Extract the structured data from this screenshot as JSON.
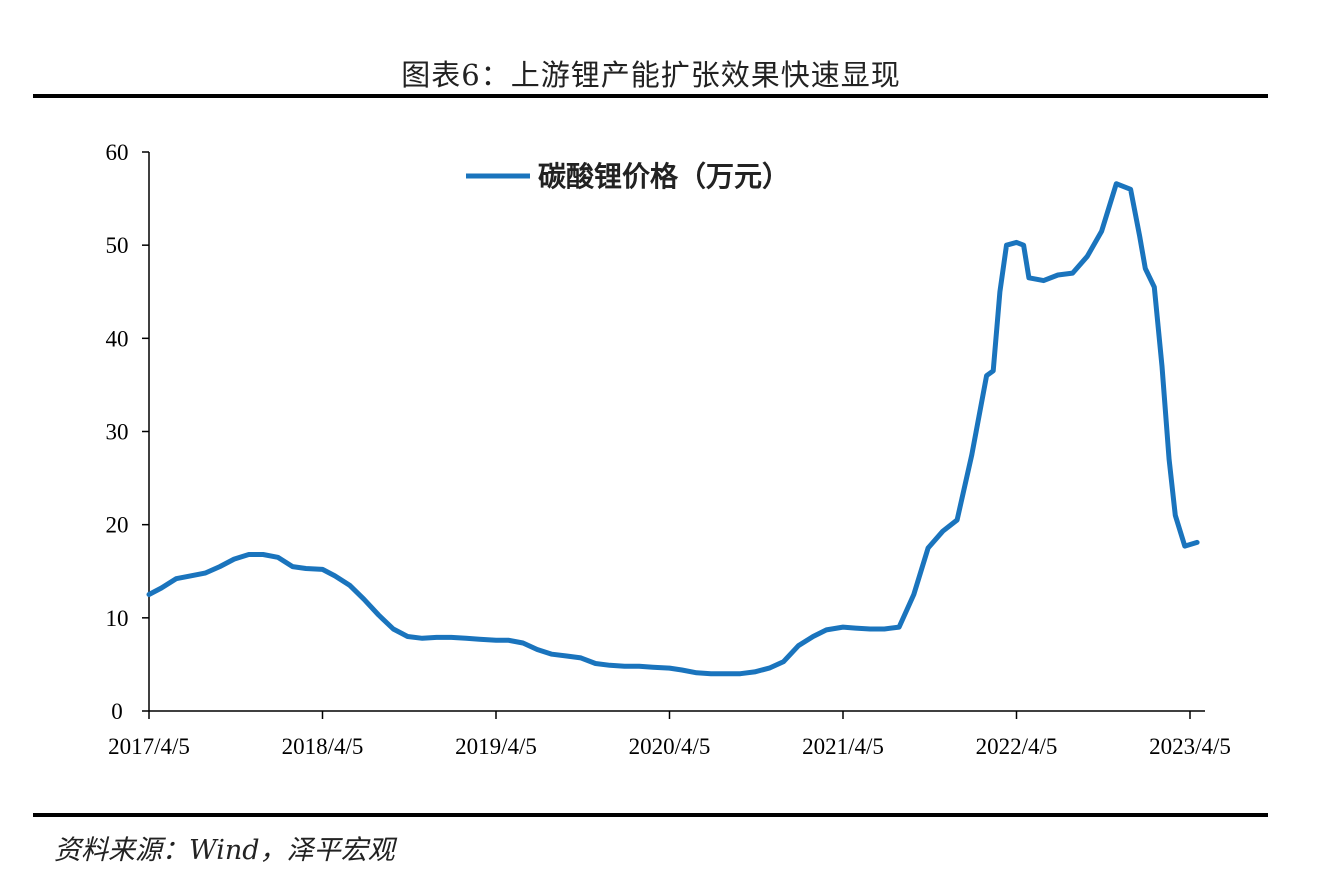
{
  "title": "图表6：上游锂产能扩张效果快速显现",
  "source": "资料来源：Wind，泽平宏观",
  "chart_data": {
    "type": "line",
    "title": "",
    "xlabel": "",
    "ylabel": "",
    "ylim": [
      0,
      60
    ],
    "yticks": [
      0,
      10,
      20,
      30,
      40,
      50,
      60
    ],
    "xticks": [
      "2017/4/5",
      "2018/4/5",
      "2019/4/5",
      "2020/4/5",
      "2021/4/5",
      "2022/4/5",
      "2023/4/5"
    ],
    "grid": false,
    "legend": "top-center",
    "series": [
      {
        "name": "碳酸锂价格（万元）",
        "color": "#1a74bd",
        "points": [
          [
            "2017-04-05",
            12.5
          ],
          [
            "2017-05-01",
            13.2
          ],
          [
            "2017-06-01",
            14.2
          ],
          [
            "2017-07-01",
            14.5
          ],
          [
            "2017-08-01",
            14.8
          ],
          [
            "2017-09-01",
            15.5
          ],
          [
            "2017-10-01",
            16.3
          ],
          [
            "2017-11-01",
            16.8
          ],
          [
            "2017-12-01",
            16.8
          ],
          [
            "2018-01-01",
            16.5
          ],
          [
            "2018-02-01",
            15.5
          ],
          [
            "2018-03-01",
            15.3
          ],
          [
            "2018-04-05",
            15.2
          ],
          [
            "2018-05-01",
            14.5
          ],
          [
            "2018-06-01",
            13.5
          ],
          [
            "2018-07-01",
            12.0
          ],
          [
            "2018-08-01",
            10.3
          ],
          [
            "2018-09-01",
            8.8
          ],
          [
            "2018-10-01",
            8.0
          ],
          [
            "2018-11-01",
            7.8
          ],
          [
            "2018-12-01",
            7.9
          ],
          [
            "2019-01-01",
            7.9
          ],
          [
            "2019-02-01",
            7.8
          ],
          [
            "2019-03-01",
            7.7
          ],
          [
            "2019-04-05",
            7.6
          ],
          [
            "2019-05-01",
            7.6
          ],
          [
            "2019-06-01",
            7.3
          ],
          [
            "2019-07-01",
            6.6
          ],
          [
            "2019-08-01",
            6.1
          ],
          [
            "2019-09-01",
            5.9
          ],
          [
            "2019-10-01",
            5.7
          ],
          [
            "2019-11-01",
            5.1
          ],
          [
            "2019-12-01",
            4.9
          ],
          [
            "2020-01-01",
            4.8
          ],
          [
            "2020-02-01",
            4.8
          ],
          [
            "2020-03-01",
            4.7
          ],
          [
            "2020-04-05",
            4.6
          ],
          [
            "2020-05-01",
            4.4
          ],
          [
            "2020-06-01",
            4.1
          ],
          [
            "2020-07-01",
            4.0
          ],
          [
            "2020-08-01",
            4.0
          ],
          [
            "2020-09-01",
            4.0
          ],
          [
            "2020-10-01",
            4.2
          ],
          [
            "2020-11-01",
            4.6
          ],
          [
            "2020-12-01",
            5.3
          ],
          [
            "2021-01-01",
            7.0
          ],
          [
            "2021-02-01",
            8.0
          ],
          [
            "2021-03-01",
            8.7
          ],
          [
            "2021-04-05",
            9.0
          ],
          [
            "2021-05-01",
            8.9
          ],
          [
            "2021-06-01",
            8.8
          ],
          [
            "2021-07-01",
            8.8
          ],
          [
            "2021-08-01",
            9.0
          ],
          [
            "2021-09-01",
            12.5
          ],
          [
            "2021-10-01",
            17.5
          ],
          [
            "2021-11-01",
            19.3
          ],
          [
            "2021-12-01",
            20.5
          ],
          [
            "2022-01-01",
            27.5
          ],
          [
            "2022-02-01",
            36.0
          ],
          [
            "2022-02-15",
            36.5
          ],
          [
            "2022-03-01",
            45.0
          ],
          [
            "2022-03-15",
            50.0
          ],
          [
            "2022-04-05",
            50.3
          ],
          [
            "2022-04-20",
            50.0
          ],
          [
            "2022-05-01",
            46.5
          ],
          [
            "2022-06-01",
            46.2
          ],
          [
            "2022-07-01",
            46.8
          ],
          [
            "2022-08-01",
            47.0
          ],
          [
            "2022-09-01",
            48.8
          ],
          [
            "2022-10-01",
            51.5
          ],
          [
            "2022-11-01",
            56.6
          ],
          [
            "2022-12-01",
            56.0
          ],
          [
            "2022-12-20",
            51.0
          ],
          [
            "2023-01-01",
            47.5
          ],
          [
            "2023-01-20",
            45.5
          ],
          [
            "2023-02-05",
            37.0
          ],
          [
            "2023-02-20",
            27.0
          ],
          [
            "2023-03-05",
            21.0
          ],
          [
            "2023-03-25",
            17.7
          ],
          [
            "2023-04-20",
            18.1
          ]
        ]
      }
    ]
  }
}
